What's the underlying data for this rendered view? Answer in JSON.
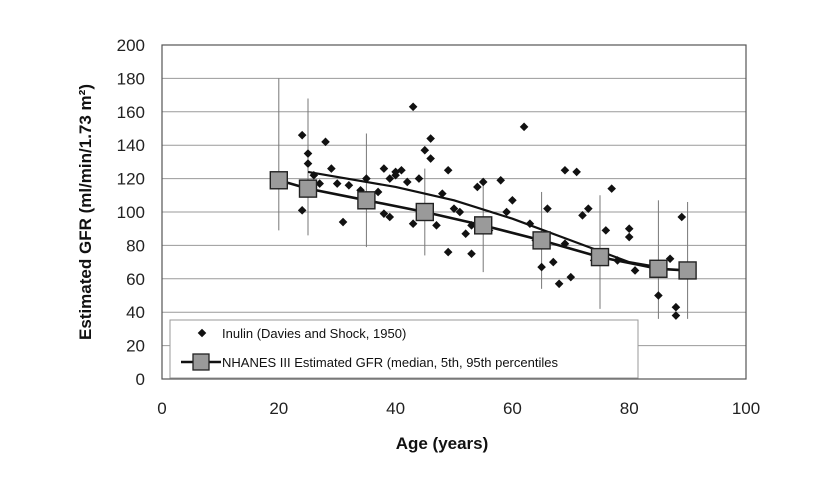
{
  "chart_data": {
    "type": "scatter",
    "xlabel": "Age (years)",
    "ylabel": "Estimated GFR (ml/min/1.73 m²)",
    "xlim": [
      0,
      100
    ],
    "ylim": [
      0,
      200
    ],
    "xticks": [
      0,
      20,
      40,
      60,
      80,
      100
    ],
    "yticks": [
      0,
      20,
      40,
      60,
      80,
      100,
      120,
      140,
      160,
      180,
      200
    ],
    "grid": "horizontal",
    "legend_position": "bottom-left",
    "colors": {
      "points": "#111111",
      "line": "#111111",
      "marker_fill": "#9a9a9a",
      "grid": "#9a9a9a"
    },
    "series": [
      {
        "name": "Inulin (Davies and Shock, 1950)",
        "kind": "points",
        "points": [
          [
            24,
            146
          ],
          [
            24,
            101
          ],
          [
            25,
            135
          ],
          [
            25,
            129
          ],
          [
            26,
            122
          ],
          [
            27,
            117
          ],
          [
            28,
            142
          ],
          [
            29,
            126
          ],
          [
            30,
            117
          ],
          [
            31,
            94
          ],
          [
            32,
            116
          ],
          [
            34,
            113
          ],
          [
            35,
            120
          ],
          [
            37,
            112
          ],
          [
            38,
            99
          ],
          [
            38,
            126
          ],
          [
            39,
            97
          ],
          [
            39,
            120
          ],
          [
            40,
            124
          ],
          [
            40,
            122
          ],
          [
            41,
            125
          ],
          [
            42,
            118
          ],
          [
            43,
            163
          ],
          [
            43,
            93
          ],
          [
            44,
            120
          ],
          [
            45,
            137
          ],
          [
            46,
            144
          ],
          [
            46,
            132
          ],
          [
            47,
            92
          ],
          [
            48,
            111
          ],
          [
            49,
            76
          ],
          [
            49,
            125
          ],
          [
            50,
            102
          ],
          [
            51,
            100
          ],
          [
            52,
            87
          ],
          [
            53,
            92
          ],
          [
            53,
            75
          ],
          [
            54,
            115
          ],
          [
            55,
            118
          ],
          [
            56,
            89
          ],
          [
            58,
            119
          ],
          [
            59,
            100
          ],
          [
            60,
            107
          ],
          [
            62,
            151
          ],
          [
            63,
            93
          ],
          [
            64,
            83
          ],
          [
            65,
            81
          ],
          [
            65,
            67
          ],
          [
            66,
            102
          ],
          [
            67,
            70
          ],
          [
            68,
            57
          ],
          [
            69,
            125
          ],
          [
            69,
            81
          ],
          [
            70,
            61
          ],
          [
            71,
            124
          ],
          [
            72,
            98
          ],
          [
            73,
            102
          ],
          [
            74,
            71
          ],
          [
            76,
            89
          ],
          [
            77,
            114
          ],
          [
            78,
            71
          ],
          [
            80,
            90
          ],
          [
            80,
            85
          ],
          [
            81,
            65
          ],
          [
            84,
            67
          ],
          [
            85,
            50
          ],
          [
            87,
            72
          ],
          [
            88,
            43
          ],
          [
            88,
            38
          ],
          [
            89,
            97
          ]
        ]
      },
      {
        "name": "NHANES III Estimated GFR (median, 5th, 95th percentiles",
        "kind": "median_with_range",
        "x": [
          20,
          25,
          35,
          45,
          55,
          65,
          75,
          85,
          90
        ],
        "median": [
          119,
          114,
          107,
          100,
          92,
          83,
          73,
          66,
          65
        ],
        "p5": [
          89,
          86,
          79,
          74,
          64,
          54,
          42,
          36,
          36
        ],
        "p95": [
          180,
          168,
          147,
          126,
          116,
          112,
          110,
          107,
          106
        ]
      },
      {
        "name": "",
        "kind": "trend",
        "x": [
          25,
          30,
          40,
          50,
          60,
          70,
          80,
          85
        ],
        "y": [
          124,
          121,
          115,
          107,
          96,
          83,
          70,
          67
        ]
      }
    ]
  }
}
